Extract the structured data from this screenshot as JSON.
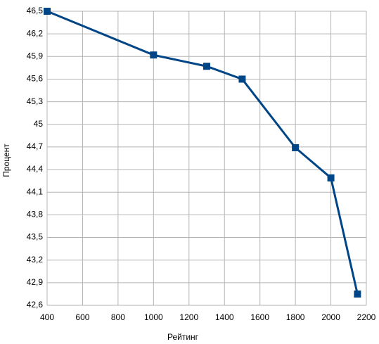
{
  "chart_data": {
    "type": "line",
    "xlabel": "Рейтинг",
    "ylabel": "Процент",
    "x": [
      400,
      1000,
      1300,
      1500,
      1800,
      2000,
      2150
    ],
    "series": [
      {
        "color": "#004586",
        "values": [
          46.5,
          45.92,
          45.77,
          45.6,
          44.69,
          44.29,
          42.75
        ]
      }
    ],
    "xlim": [
      400,
      2200
    ],
    "xticks": [
      400,
      600,
      800,
      1000,
      1200,
      1400,
      1600,
      1800,
      2000,
      2200
    ],
    "ylim": [
      42.6,
      46.5
    ],
    "yticks": [
      {
        "value": 42.6,
        "label": "42,6"
      },
      {
        "value": 42.9,
        "label": "42,9"
      },
      {
        "value": 43.2,
        "label": "43,2"
      },
      {
        "value": 43.5,
        "label": "43,5"
      },
      {
        "value": 43.8,
        "label": "43,8"
      },
      {
        "value": 44.1,
        "label": "44,1"
      },
      {
        "value": 44.4,
        "label": "44,4"
      },
      {
        "value": 44.7,
        "label": "44,7"
      },
      45,
      {
        "value": 45.3,
        "label": "45,3"
      },
      {
        "value": 45.6,
        "label": "45,6"
      },
      {
        "value": 45.9,
        "label": "45,9"
      },
      {
        "value": 46.2,
        "label": "46,2"
      },
      {
        "value": 46.5,
        "label": "46,5"
      }
    ],
    "grid": true
  }
}
